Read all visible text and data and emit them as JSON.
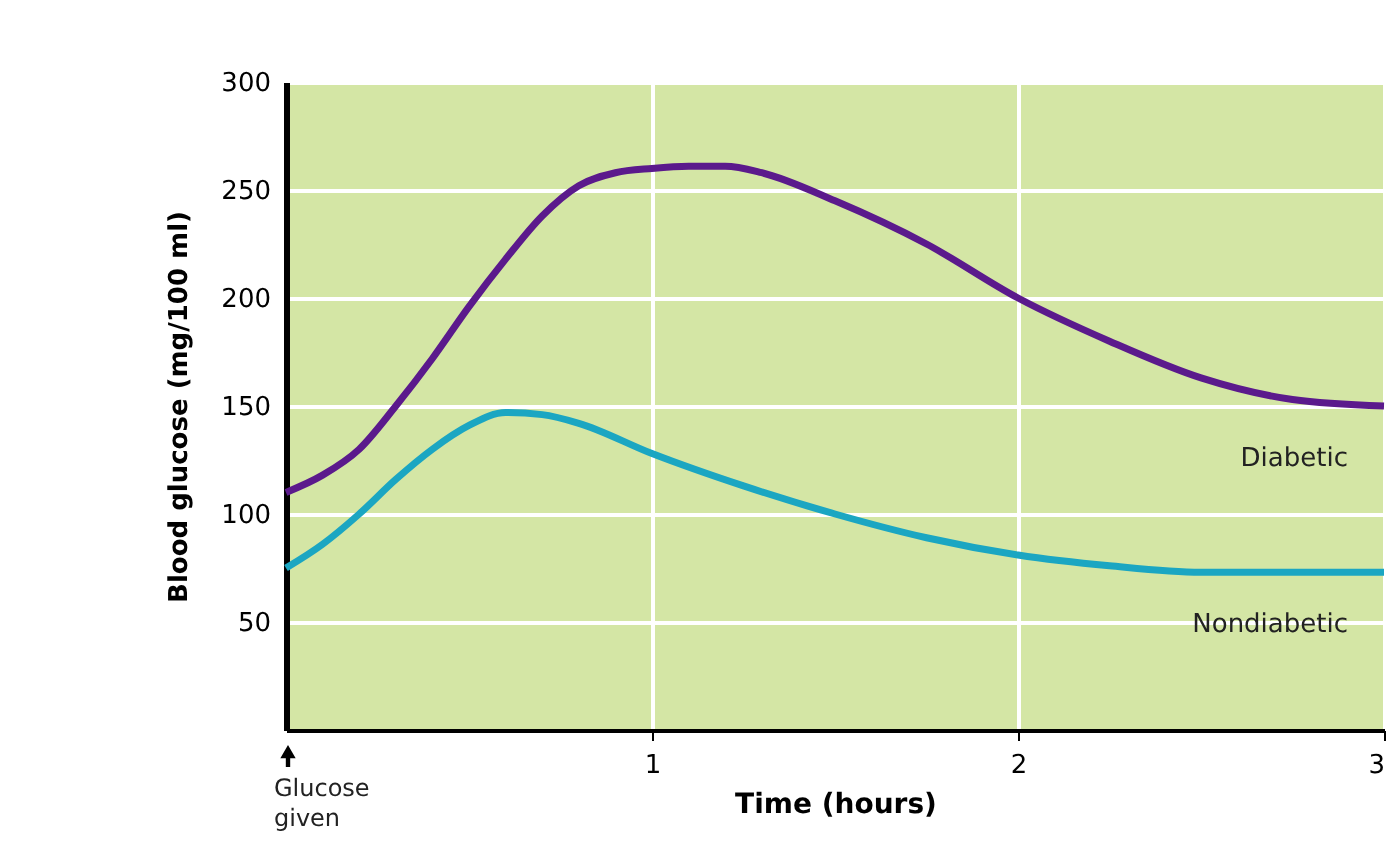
{
  "chart_data": {
    "type": "line",
    "xlabel": "Time (hours)",
    "ylabel": "Blood glucose (mg/100 ml)",
    "xlim": [
      0,
      3
    ],
    "xticks": [
      1,
      2,
      3
    ],
    "ylim": [
      0,
      300
    ],
    "yticks": [
      50,
      100,
      150,
      200,
      250,
      300
    ],
    "grid": true,
    "legend": false,
    "marker": "none",
    "line_style": "solid",
    "series": [
      {
        "name": "Diabetic",
        "color": "#5b1a8c",
        "x": [
          0,
          0.1,
          0.2,
          0.3,
          0.4,
          0.5,
          0.6,
          0.7,
          0.8,
          0.9,
          1.0,
          1.1,
          1.2,
          1.3,
          1.5,
          1.75,
          2.0,
          2.25,
          2.5,
          2.75,
          3.0
        ],
        "values": [
          110,
          118,
          130,
          150,
          172,
          196,
          218,
          238,
          252,
          258,
          260,
          261,
          261,
          258,
          245,
          225,
          200,
          180,
          163,
          153,
          150
        ]
      },
      {
        "name": "Nondiabetic",
        "color": "#1ba6c2",
        "x": [
          0,
          0.1,
          0.2,
          0.3,
          0.4,
          0.5,
          0.6,
          0.7,
          0.8,
          1.0,
          1.25,
          1.5,
          1.75,
          2.0,
          2.25,
          2.5,
          2.75,
          3.0
        ],
        "values": [
          75,
          86,
          100,
          116,
          130,
          141,
          147,
          146,
          142,
          128,
          113,
          100,
          89,
          81,
          76,
          73,
          73,
          73
        ]
      }
    ],
    "annotations": [
      "Glucose given"
    ]
  }
}
